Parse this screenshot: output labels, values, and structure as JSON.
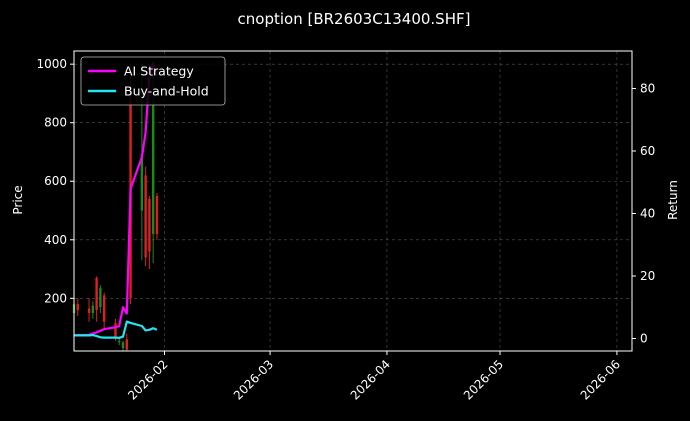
{
  "chart_data": {
    "type": "line",
    "title": "cnoption [BR2603C13400.SHF]",
    "ylabel_left": "Price",
    "ylabel_right": "Return",
    "xlim": [
      "2026-01-08",
      "2026-06-05"
    ],
    "ylim_left": [
      20,
      1045
    ],
    "ylim_right": [
      -4,
      92
    ],
    "x_ticks": [
      "2026-02-01",
      "2026-03-01",
      "2026-04-01",
      "2026-05-01",
      "2026-06-01"
    ],
    "x_tick_labels": [
      "2026-02",
      "2026-03",
      "2026-04",
      "2026-05",
      "2026-06"
    ],
    "y_ticks_left": [
      200,
      400,
      600,
      800,
      1000
    ],
    "y_ticks_right": [
      0,
      20,
      40,
      60,
      80
    ],
    "grid": true,
    "legend_placement": "top-left",
    "background": "#000000",
    "series": [
      {
        "name": "AI Strategy",
        "color": "#ff00ff",
        "axis": "right",
        "x": [
          "2026-01-08",
          "2026-01-09",
          "2026-01-12",
          "2026-01-13",
          "2026-01-14",
          "2026-01-15",
          "2026-01-16",
          "2026-01-19",
          "2026-01-20",
          "2026-01-21",
          "2026-01-22",
          "2026-01-23",
          "2026-01-26",
          "2026-01-27",
          "2026-01-28",
          "2026-01-29",
          "2026-01-30"
        ],
        "values": [
          1,
          1,
          1.2,
          1.6,
          2,
          2.5,
          3,
          3.6,
          4,
          10,
          8,
          48,
          58,
          66,
          84,
          88,
          84
        ]
      },
      {
        "name": "Buy-and-Hold",
        "color": "#22e5ef",
        "axis": "right",
        "x": [
          "2026-01-08",
          "2026-01-09",
          "2026-01-12",
          "2026-01-13",
          "2026-01-14",
          "2026-01-15",
          "2026-01-16",
          "2026-01-19",
          "2026-01-20",
          "2026-01-21",
          "2026-01-22",
          "2026-01-23",
          "2026-01-26",
          "2026-01-27",
          "2026-01-28",
          "2026-01-29",
          "2026-01-30"
        ],
        "values": [
          1,
          1,
          1,
          1.1,
          0.8,
          0.4,
          0.3,
          0.3,
          0.2,
          0.6,
          5.4,
          5,
          4,
          2.6,
          2.8,
          3.3,
          2.8
        ]
      }
    ],
    "candles": {
      "axis": "left",
      "up_color": "#1a8a1a",
      "down_color": "#e02020",
      "items": [
        {
          "x": "2026-01-08",
          "open": 150,
          "close": 180,
          "high": 210,
          "low": 130
        },
        {
          "x": "2026-01-09",
          "open": 180,
          "close": 160,
          "high": 200,
          "low": 140
        },
        {
          "x": "2026-01-12",
          "open": 165,
          "close": 150,
          "high": 200,
          "low": 120
        },
        {
          "x": "2026-01-13",
          "open": 150,
          "close": 175,
          "high": 190,
          "low": 130
        },
        {
          "x": "2026-01-14",
          "open": 270,
          "close": 160,
          "high": 275,
          "low": 120
        },
        {
          "x": "2026-01-15",
          "open": 170,
          "close": 235,
          "high": 245,
          "low": 150
        },
        {
          "x": "2026-01-16",
          "open": 210,
          "close": 120,
          "high": 220,
          "low": 95
        },
        {
          "x": "2026-01-19",
          "open": 115,
          "close": 65,
          "high": 130,
          "low": 55
        },
        {
          "x": "2026-01-20",
          "open": 50,
          "close": 55,
          "high": 70,
          "low": 40
        },
        {
          "x": "2026-01-21",
          "open": 30,
          "close": 50,
          "high": 55,
          "low": 20
        },
        {
          "x": "2026-01-22",
          "open": 60,
          "close": 25,
          "high": 80,
          "low": 20
        },
        {
          "x": "2026-01-23",
          "open": 870,
          "close": 200,
          "high": 1000,
          "low": 180
        },
        {
          "x": "2026-01-26",
          "open": 500,
          "close": 690,
          "high": 1000,
          "low": 330
        },
        {
          "x": "2026-01-27",
          "open": 620,
          "close": 340,
          "high": 650,
          "low": 310
        },
        {
          "x": "2026-01-28",
          "open": 540,
          "close": 360,
          "high": 550,
          "low": 300
        },
        {
          "x": "2026-01-29",
          "open": 420,
          "close": 860,
          "high": 990,
          "low": 320
        },
        {
          "x": "2026-01-30",
          "open": 550,
          "close": 420,
          "high": 560,
          "low": 400
        }
      ]
    }
  }
}
